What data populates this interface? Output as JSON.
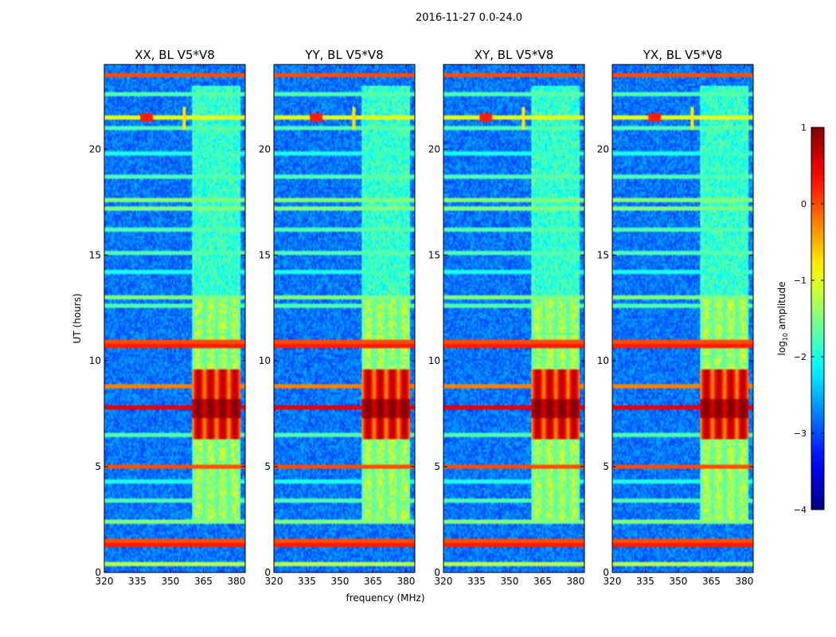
{
  "figure": {
    "suptitle": "2016-11-27 0.0-24.0"
  },
  "chart_data": [
    {
      "type": "heatmap",
      "title": "XX, BL V5*V8",
      "xlim": [
        320,
        384
      ],
      "ylim": [
        0,
        24
      ],
      "xticks": [
        "320",
        "335",
        "350",
        "365",
        "380"
      ],
      "yticks": [
        "0",
        "5",
        "10",
        "15",
        "20"
      ],
      "xlabel": "",
      "ylabel": "UT (hours)",
      "vmin": -4,
      "vmax": 1
    },
    {
      "type": "heatmap",
      "title": "YY, BL V5*V8",
      "xlim": [
        320,
        384
      ],
      "ylim": [
        0,
        24
      ],
      "xticks": [
        "320",
        "335",
        "350",
        "365",
        "380"
      ],
      "yticks": [
        "0",
        "5",
        "10",
        "15",
        "20"
      ],
      "xlabel": "frequency (MHz)",
      "ylabel": "",
      "vmin": -4,
      "vmax": 1
    },
    {
      "type": "heatmap",
      "title": "XY, BL V5*V8",
      "xlim": [
        320,
        384
      ],
      "ylim": [
        0,
        24
      ],
      "xticks": [
        "320",
        "335",
        "350",
        "365",
        "380"
      ],
      "yticks": [
        "0",
        "5",
        "10",
        "15",
        "20"
      ],
      "xlabel": "",
      "ylabel": "",
      "vmin": -4,
      "vmax": 1
    },
    {
      "type": "heatmap",
      "title": "YX, BL V5*V8",
      "xlim": [
        320,
        384
      ],
      "ylim": [
        0,
        24
      ],
      "xticks": [
        "320",
        "335",
        "350",
        "365",
        "380"
      ],
      "yticks": [
        "0",
        "5",
        "10",
        "15",
        "20"
      ],
      "xlabel": "",
      "ylabel": "",
      "vmin": -4,
      "vmax": 1
    }
  ],
  "colorbar": {
    "label": "log10 amplitude",
    "label_main": "log",
    "label_sub": "10",
    "label_rest": " amplitude",
    "range": [
      -4,
      1
    ],
    "ticks": [
      "1",
      "0",
      "−1",
      "−2",
      "−3",
      "−4"
    ],
    "tick_values": [
      1,
      0,
      -1,
      -2,
      -3,
      -4
    ]
  }
}
